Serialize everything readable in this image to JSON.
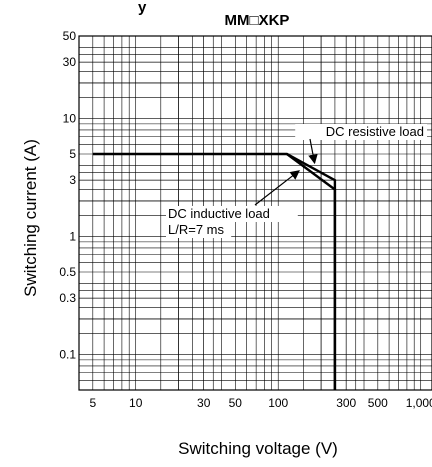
{
  "chart_data": {
    "type": "line",
    "title_lead": "y",
    "title": "MM□XKP",
    "xlabel": "Switching voltage (V)",
    "ylabel": "Switching current (A)",
    "x_scale": "log",
    "y_scale": "log",
    "xlim": [
      4,
      1200
    ],
    "ylim": [
      0.05,
      50
    ],
    "x_ticks": [
      {
        "value": 5,
        "label": "5"
      },
      {
        "value": 10,
        "label": "10"
      },
      {
        "value": 30,
        "label": "30"
      },
      {
        "value": 50,
        "label": "50"
      },
      {
        "value": 100,
        "label": "100"
      },
      {
        "value": 300,
        "label": "300"
      },
      {
        "value": 500,
        "label": "500"
      },
      {
        "value": 1000,
        "label": "1,000"
      }
    ],
    "y_ticks": [
      {
        "value": 50,
        "label": "50"
      },
      {
        "value": 30,
        "label": "30"
      },
      {
        "value": 10,
        "label": "10"
      },
      {
        "value": 5,
        "label": "5"
      },
      {
        "value": 3,
        "label": "3"
      },
      {
        "value": 1,
        "label": "1"
      },
      {
        "value": 0.5,
        "label": "0.5"
      },
      {
        "value": 0.3,
        "label": "0.3"
      },
      {
        "value": 0.1,
        "label": "0.1"
      }
    ],
    "grid": true,
    "series": [
      {
        "name": "DC resistive load",
        "points": [
          [
            5,
            5
          ],
          [
            115,
            5
          ],
          [
            250,
            3
          ],
          [
            250,
            0.05
          ]
        ]
      },
      {
        "name": "DC inductive load",
        "points": [
          [
            115,
            5
          ],
          [
            250,
            2.5
          ],
          [
            250,
            0.05
          ]
        ]
      }
    ],
    "annotations": [
      {
        "text": "DC resistive load",
        "target": [
          180,
          4.2
        ]
      },
      {
        "text": "DC inductive load",
        "target": [
          140,
          3.6
        ]
      },
      {
        "text": "L/R=7 ms"
      }
    ]
  }
}
